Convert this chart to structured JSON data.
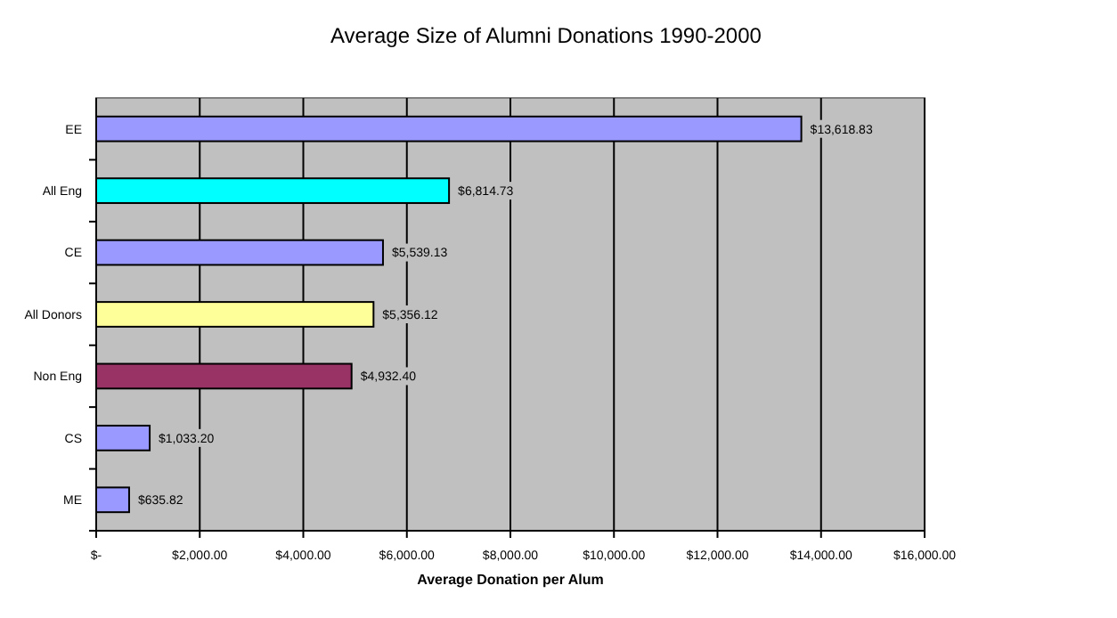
{
  "chart_data": {
    "type": "bar",
    "orientation": "horizontal",
    "title": "Average Size of Alumni Donations 1990-2000",
    "xlabel": "Average Donation per Alum",
    "categories": [
      "EE",
      "All Eng",
      "CE",
      "All Donors",
      "Non Eng",
      "CS",
      "ME"
    ],
    "values": [
      13618.83,
      6814.73,
      5539.13,
      5356.12,
      4932.4,
      1033.2,
      635.82
    ],
    "colors": [
      "#9999ff",
      "#00ffff",
      "#9999ff",
      "#ffff99",
      "#993366",
      "#9999ff",
      "#9999ff"
    ],
    "value_labels": [
      "$13,618.83",
      "$6,814.73",
      "$5,539.13",
      "$5,356.12",
      "$4,932.40",
      "$1,033.20",
      "$635.82"
    ],
    "xlim": [
      0,
      16000
    ],
    "xticks": [
      {
        "value": 0,
        "label": "$-"
      },
      {
        "value": 2000,
        "label": "$2,000.00"
      },
      {
        "value": 4000,
        "label": "$4,000.00"
      },
      {
        "value": 6000,
        "label": "$6,000.00"
      },
      {
        "value": 8000,
        "label": "$8,000.00"
      },
      {
        "value": 10000,
        "label": "$10,000.00"
      },
      {
        "value": 12000,
        "label": "$12,000.00"
      },
      {
        "value": 14000,
        "label": "$14,000.00"
      },
      {
        "value": 16000,
        "label": "$16,000.00"
      }
    ],
    "grid": "x"
  }
}
